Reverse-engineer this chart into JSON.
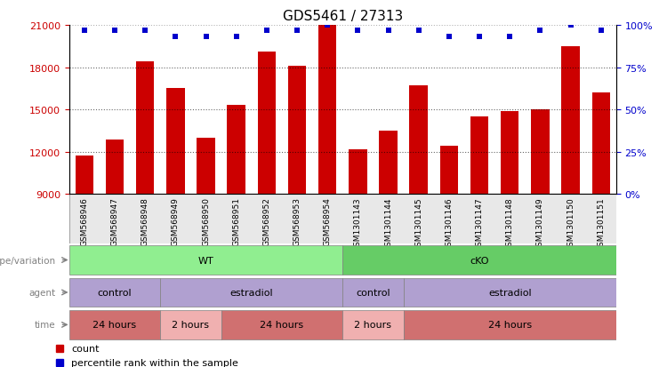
{
  "title": "GDS5461 / 27313",
  "samples": [
    "GSM568946",
    "GSM568947",
    "GSM568948",
    "GSM568949",
    "GSM568950",
    "GSM568951",
    "GSM568952",
    "GSM568953",
    "GSM568954",
    "GSM1301143",
    "GSM1301144",
    "GSM1301145",
    "GSM1301146",
    "GSM1301147",
    "GSM1301148",
    "GSM1301149",
    "GSM1301150",
    "GSM1301151"
  ],
  "counts": [
    11750,
    12900,
    18400,
    16500,
    13000,
    15300,
    19100,
    18100,
    21000,
    12200,
    13500,
    16700,
    12400,
    14500,
    14900,
    15000,
    19500,
    16200
  ],
  "percentile_ranks": [
    97,
    97,
    97,
    93,
    93,
    93,
    97,
    97,
    100,
    97,
    97,
    97,
    93,
    93,
    93,
    97,
    100,
    97
  ],
  "bar_color": "#cc0000",
  "dot_color": "#0000cc",
  "ylim_left": [
    9000,
    21000
  ],
  "yticks_left": [
    9000,
    12000,
    15000,
    18000,
    21000
  ],
  "ylim_right": [
    0,
    100
  ],
  "yticks_right": [
    0,
    25,
    50,
    75,
    100
  ],
  "grid_yticks": [
    12000,
    15000,
    18000
  ],
  "annotations": [
    {
      "label": "genotype/variation",
      "groups": [
        {
          "text": "WT",
          "start": 0,
          "end": 8,
          "color": "#90ee90"
        },
        {
          "text": "cKO",
          "start": 9,
          "end": 17,
          "color": "#66cc66"
        }
      ]
    },
    {
      "label": "agent",
      "groups": [
        {
          "text": "control",
          "start": 0,
          "end": 2,
          "color": "#b0a0d0"
        },
        {
          "text": "estradiol",
          "start": 3,
          "end": 8,
          "color": "#b0a0d0"
        },
        {
          "text": "control",
          "start": 9,
          "end": 10,
          "color": "#b0a0d0"
        },
        {
          "text": "estradiol",
          "start": 11,
          "end": 17,
          "color": "#b0a0d0"
        }
      ]
    },
    {
      "label": "time",
      "groups": [
        {
          "text": "24 hours",
          "start": 0,
          "end": 2,
          "color": "#d07070"
        },
        {
          "text": "2 hours",
          "start": 3,
          "end": 4,
          "color": "#f0b0b0"
        },
        {
          "text": "24 hours",
          "start": 5,
          "end": 8,
          "color": "#d07070"
        },
        {
          "text": "2 hours",
          "start": 9,
          "end": 10,
          "color": "#f0b0b0"
        },
        {
          "text": "24 hours",
          "start": 11,
          "end": 17,
          "color": "#d07070"
        }
      ]
    }
  ],
  "legend": [
    {
      "color": "#cc0000",
      "label": "count"
    },
    {
      "color": "#0000cc",
      "label": "percentile rank within the sample"
    }
  ]
}
